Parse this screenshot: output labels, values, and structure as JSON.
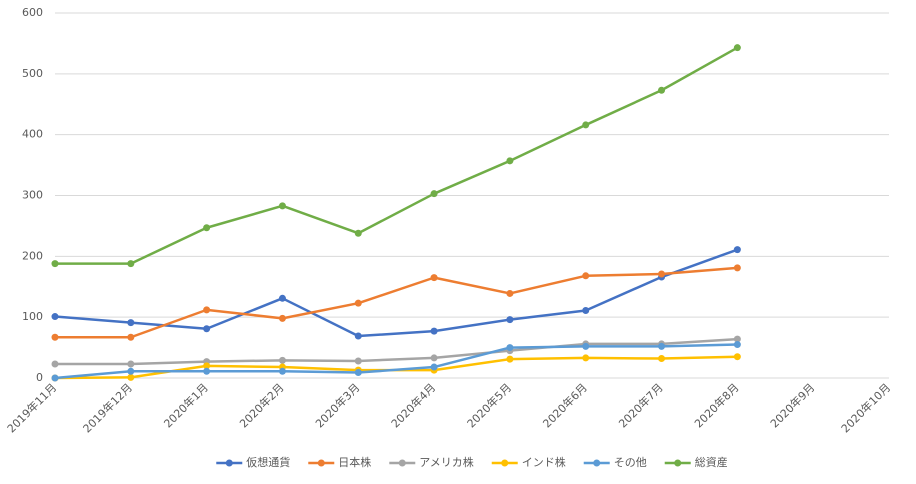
{
  "chart_data": {
    "type": "line",
    "categories": [
      "2019年11月",
      "2019年12月",
      "2020年1月",
      "2020年2月",
      "2020年3月",
      "2020年4月",
      "2020年5月",
      "2020年6月",
      "2020年7月",
      "2020年8月",
      "2020年9月",
      "2020年10月"
    ],
    "series": [
      {
        "name": "仮想通貨",
        "color": "#4472c4",
        "values": [
          101,
          91,
          81,
          131,
          69,
          77,
          96,
          111,
          166,
          211,
          null,
          null
        ]
      },
      {
        "name": "日本株",
        "color": "#ed7d31",
        "values": [
          67,
          67,
          112,
          98,
          123,
          165,
          139,
          168,
          171,
          181,
          null,
          null
        ]
      },
      {
        "name": "アメリカ株",
        "color": "#a5a5a5",
        "values": [
          23,
          23,
          27,
          29,
          28,
          33,
          45,
          56,
          56,
          64,
          null,
          null
        ]
      },
      {
        "name": "インド株",
        "color": "#ffc000",
        "values": [
          0,
          1,
          20,
          18,
          13,
          13,
          31,
          33,
          32,
          35,
          null,
          null
        ]
      },
      {
        "name": "その他",
        "color": "#5b9bd5",
        "values": [
          0,
          11,
          11,
          11,
          9,
          18,
          50,
          52,
          52,
          55,
          null,
          null
        ]
      },
      {
        "name": "総資産",
        "color": "#70ad47",
        "values": [
          188,
          188,
          247,
          283,
          238,
          303,
          357,
          416,
          473,
          543,
          null,
          null
        ]
      }
    ],
    "ylim": [
      0,
      600
    ],
    "yticks": [
      0,
      100,
      200,
      300,
      400,
      500,
      600
    ],
    "grid": true,
    "legend": "bottom"
  }
}
